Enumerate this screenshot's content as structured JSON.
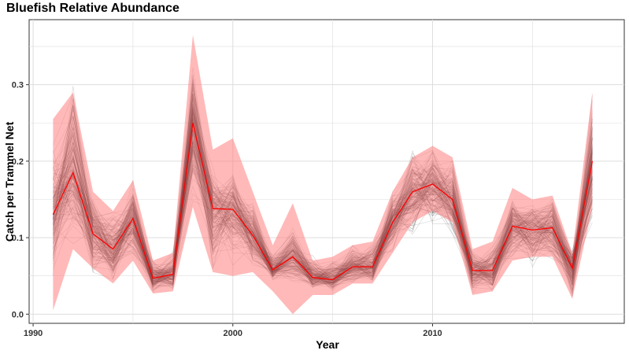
{
  "chart_data": {
    "type": "line",
    "title": "Bluefish Relative Abundance",
    "xlabel": "Year",
    "ylabel": "Catch per Trammel Net",
    "xlim": [
      1989.8,
      2019.6
    ],
    "ylim": [
      -0.012,
      0.385
    ],
    "x_ticks": [
      1990,
      2000,
      2010
    ],
    "y_ticks": [
      0.0,
      0.1,
      0.2,
      0.3
    ],
    "y_tick_labels": [
      "0.0",
      "0.1",
      "0.2",
      "0.3"
    ],
    "grid": true,
    "x": [
      1991,
      1992,
      1993,
      1994,
      1995,
      1996,
      1997,
      1998,
      1999,
      2000,
      2001,
      2002,
      2003,
      2004,
      2005,
      2006,
      2007,
      2008,
      2009,
      2010,
      2011,
      2012,
      2013,
      2014,
      2015,
      2016,
      2017,
      2018
    ],
    "series": [
      {
        "role": "confidence-band",
        "lower": [
          0.005,
          0.085,
          0.06,
          0.04,
          0.07,
          0.027,
          0.03,
          0.14,
          0.055,
          0.05,
          0.055,
          0.03,
          0.0,
          0.025,
          0.025,
          0.04,
          0.04,
          0.08,
          0.12,
          0.135,
          0.12,
          0.025,
          0.03,
          0.07,
          0.075,
          0.075,
          0.02,
          0.14
        ],
        "upper": [
          0.255,
          0.29,
          0.16,
          0.135,
          0.175,
          0.07,
          0.08,
          0.365,
          0.215,
          0.23,
          0.16,
          0.09,
          0.145,
          0.07,
          0.075,
          0.09,
          0.095,
          0.16,
          0.205,
          0.22,
          0.205,
          0.085,
          0.095,
          0.165,
          0.15,
          0.155,
          0.08,
          0.29
        ]
      },
      {
        "role": "estimate",
        "values": [
          0.13,
          0.185,
          0.105,
          0.085,
          0.125,
          0.047,
          0.052,
          0.25,
          0.138,
          0.137,
          0.103,
          0.058,
          0.075,
          0.048,
          0.045,
          0.062,
          0.062,
          0.12,
          0.16,
          0.17,
          0.15,
          0.057,
          0.057,
          0.115,
          0.11,
          0.113,
          0.06,
          0.2
        ]
      },
      {
        "role": "bootstrap-envelope",
        "lower": [
          0.035,
          0.075,
          0.04,
          0.03,
          0.06,
          0.025,
          0.025,
          0.14,
          0.04,
          0.06,
          0.055,
          0.04,
          0.03,
          0.03,
          0.028,
          0.035,
          0.035,
          0.075,
          0.09,
          0.11,
          0.095,
          0.022,
          0.025,
          0.06,
          0.055,
          0.06,
          0.015,
          0.1
        ],
        "upper": [
          0.24,
          0.34,
          0.16,
          0.14,
          0.185,
          0.075,
          0.085,
          0.34,
          0.2,
          0.2,
          0.155,
          0.085,
          0.12,
          0.08,
          0.075,
          0.095,
          0.1,
          0.17,
          0.22,
          0.225,
          0.21,
          0.09,
          0.095,
          0.16,
          0.16,
          0.165,
          0.085,
          0.3
        ]
      }
    ],
    "colors": {
      "band": "#ff7f7f",
      "estimate": "#ff0000",
      "bootstrap": "#000000",
      "grid": "#dddddd",
      "axis": "#333333"
    }
  }
}
